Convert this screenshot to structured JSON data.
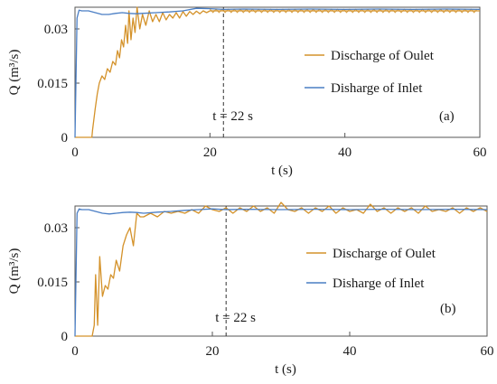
{
  "colors": {
    "outlet": "#D4922A",
    "inlet": "#4A7EC4",
    "axis": "#555555",
    "dashed": "#333333"
  },
  "chart_data": [
    {
      "type": "line",
      "panel_label": "(a)",
      "xlabel": "t  (s)",
      "ylabel": "Q  (m³/s)",
      "xlim": [
        0,
        60
      ],
      "ylim": [
        0,
        0.036
      ],
      "xticks": [
        "0",
        "20",
        "40",
        "60"
      ],
      "yticks": [
        "0",
        "0.015",
        "0.03"
      ],
      "ytick_values": [
        0,
        0.015,
        0.03
      ],
      "xtick_values": [
        0,
        20,
        40,
        60
      ],
      "grid": false,
      "legend_position": "right",
      "vline": {
        "x": 22,
        "label": "t  = 22 s"
      },
      "series": [
        {
          "name": "Discharge of Oulet",
          "color_key": "outlet",
          "oscillation": 0.0008,
          "x": [
            0,
            2.5,
            2.6,
            3.0,
            3.3,
            3.6,
            4.0,
            4.4,
            4.8,
            5.2,
            5.6,
            6.0,
            6.3,
            6.6,
            6.9,
            7.2,
            7.5,
            7.8,
            8.0,
            8.3,
            8.6,
            8.9,
            9.2,
            9.6,
            10.0,
            10.5,
            11.0,
            11.5,
            12.0,
            12.5,
            13.0,
            13.5,
            14.0,
            14.5,
            15.0,
            15.5,
            16.0,
            16.5,
            17.0,
            17.5,
            18.0,
            18.5,
            19.0,
            19.5,
            20.0,
            60
          ],
          "y": [
            0,
            0,
            0.002,
            0.008,
            0.012,
            0.015,
            0.017,
            0.016,
            0.019,
            0.018,
            0.021,
            0.02,
            0.024,
            0.022,
            0.027,
            0.025,
            0.031,
            0.026,
            0.035,
            0.027,
            0.033,
            0.029,
            0.036,
            0.03,
            0.034,
            0.031,
            0.035,
            0.032,
            0.034,
            0.032,
            0.0345,
            0.0325,
            0.034,
            0.033,
            0.0345,
            0.033,
            0.0348,
            0.0335,
            0.0348,
            0.034,
            0.0349,
            0.0342,
            0.035,
            0.0345,
            0.035,
            0.035
          ]
        },
        {
          "name": "Disharge of Inlet",
          "color_key": "inlet",
          "oscillation": 0,
          "x": [
            0,
            0.3,
            0.6,
            1.0,
            2.0,
            3.0,
            4.0,
            5.0,
            6.0,
            7.0,
            8.0,
            9.0,
            10.0,
            12.0,
            14.0,
            16.0,
            18.0,
            20.0,
            22.0,
            25.0,
            30.0,
            35.0,
            40.0,
            45.0,
            50.0,
            55.0,
            60.0
          ],
          "y": [
            0,
            0.033,
            0.0352,
            0.035,
            0.035,
            0.0345,
            0.034,
            0.034,
            0.0343,
            0.0345,
            0.0343,
            0.0342,
            0.0343,
            0.0345,
            0.0347,
            0.035,
            0.0357,
            0.0356,
            0.0354,
            0.0355,
            0.0354,
            0.0355,
            0.0354,
            0.0355,
            0.0354,
            0.0355,
            0.0354
          ]
        }
      ]
    },
    {
      "type": "line",
      "panel_label": "(b)",
      "xlabel": "t  (s)",
      "ylabel": "Q  (m³/s)",
      "xlim": [
        0,
        60
      ],
      "ylim": [
        0,
        0.036
      ],
      "xticks": [
        "0",
        "20",
        "40",
        "60"
      ],
      "yticks": [
        "0",
        "0.015",
        "0.03"
      ],
      "ytick_values": [
        0,
        0.015,
        0.03
      ],
      "xtick_values": [
        0,
        20,
        40,
        60
      ],
      "grid": false,
      "legend_position": "right",
      "vline": {
        "x": 22,
        "label": "t  = 22 s"
      },
      "series": [
        {
          "name": "Discharge of Oulet",
          "color_key": "outlet",
          "oscillation": 0,
          "x": [
            0,
            2.5,
            2.8,
            3.0,
            3.3,
            3.6,
            4.0,
            4.4,
            4.8,
            5.2,
            5.6,
            6.0,
            6.5,
            7.0,
            7.5,
            8.0,
            8.5,
            9.0,
            9.5,
            10.0,
            11.0,
            12.0,
            13.0,
            14.0,
            15.0,
            16.0,
            17.0,
            18.0,
            19.0,
            20.0,
            21.0,
            22.0,
            23.0,
            24.0,
            25.0,
            26.0,
            27.0,
            28.0,
            29.0,
            30.0,
            31.0,
            32.0,
            33.0,
            34.0,
            35.0,
            36.0,
            37.0,
            38.0,
            39.0,
            40.0,
            41.0,
            42.0,
            43.0,
            44.0,
            45.0,
            46.0,
            47.0,
            48.0,
            49.0,
            50.0,
            51.0,
            52.0,
            53.0,
            54.0,
            55.0,
            56.0,
            57.0,
            58.0,
            59.0,
            60.0
          ],
          "y": [
            0,
            0,
            0.003,
            0.017,
            0.003,
            0.022,
            0.011,
            0.014,
            0.013,
            0.017,
            0.016,
            0.021,
            0.018,
            0.025,
            0.028,
            0.03,
            0.025,
            0.034,
            0.033,
            0.033,
            0.034,
            0.033,
            0.0345,
            0.034,
            0.0345,
            0.034,
            0.035,
            0.034,
            0.036,
            0.035,
            0.0345,
            0.0355,
            0.034,
            0.0355,
            0.0345,
            0.036,
            0.0345,
            0.0355,
            0.034,
            0.037,
            0.035,
            0.0345,
            0.0355,
            0.034,
            0.0355,
            0.0345,
            0.036,
            0.034,
            0.0355,
            0.0345,
            0.035,
            0.034,
            0.0365,
            0.0345,
            0.0355,
            0.034,
            0.0355,
            0.0345,
            0.0355,
            0.034,
            0.036,
            0.0345,
            0.035,
            0.0345,
            0.0355,
            0.034,
            0.0355,
            0.0345,
            0.0355,
            0.0345
          ]
        },
        {
          "name": "Disharge of Inlet",
          "color_key": "inlet",
          "oscillation": 0,
          "x": [
            0,
            0.3,
            0.6,
            1.0,
            2.0,
            3.0,
            4.0,
            5.0,
            6.0,
            7.0,
            8.0,
            9.0,
            10.0,
            12.0,
            14.0,
            16.0,
            18.0,
            20.0,
            22.0,
            25.0,
            30.0,
            35.0,
            40.0,
            45.0,
            50.0,
            55.0,
            60.0
          ],
          "y": [
            0,
            0.034,
            0.0352,
            0.035,
            0.035,
            0.0345,
            0.034,
            0.0338,
            0.034,
            0.0342,
            0.0343,
            0.0342,
            0.034,
            0.0343,
            0.0345,
            0.0348,
            0.035,
            0.0352,
            0.035,
            0.0351,
            0.035,
            0.0351,
            0.035,
            0.0351,
            0.035,
            0.0351,
            0.035
          ]
        }
      ]
    }
  ]
}
